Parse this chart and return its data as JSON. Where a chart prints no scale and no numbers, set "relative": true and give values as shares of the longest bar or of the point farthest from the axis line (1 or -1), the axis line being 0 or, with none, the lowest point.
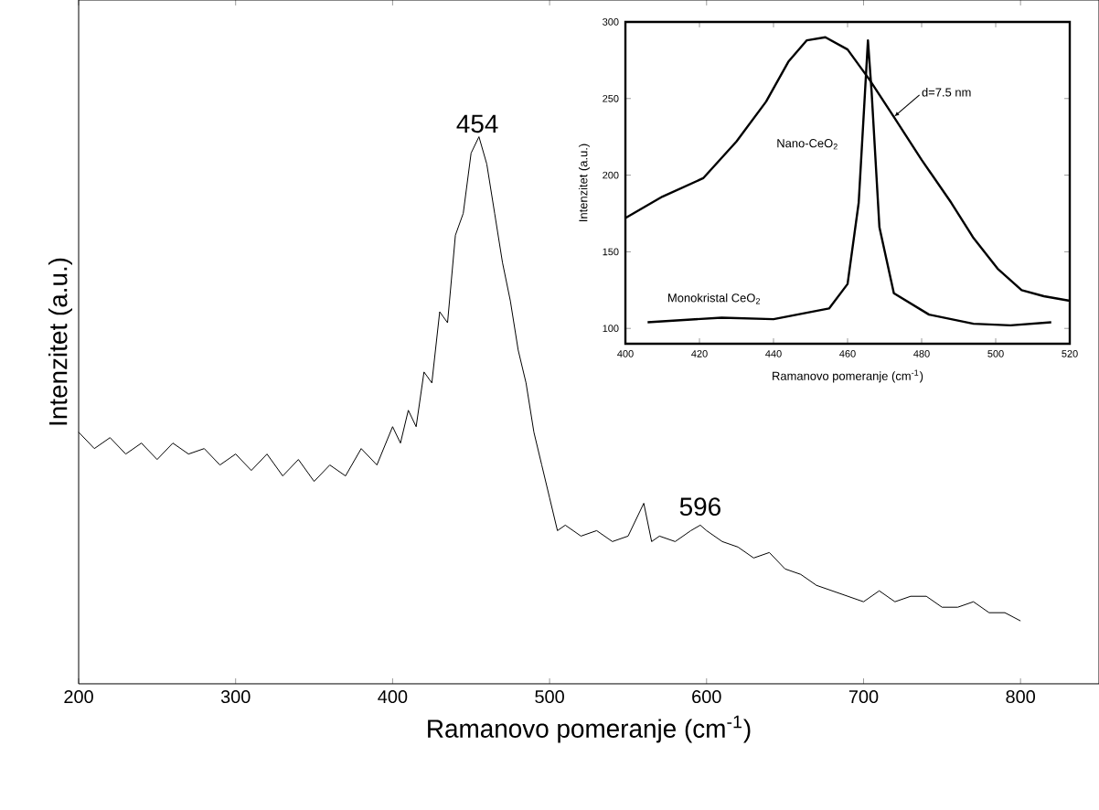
{
  "chart_data": [
    {
      "type": "line",
      "relative": true,
      "xlim": [
        200,
        850
      ],
      "xticks": [
        200,
        300,
        400,
        500,
        600,
        700,
        800
      ],
      "xlabel": "Ramanovo pomeranje (cm$^{-1}$)",
      "ylabel": "Intenzitet (a.u.)",
      "annotations": [
        {
          "text": "454",
          "x": 454,
          "y": 1.0
        },
        {
          "text": "596",
          "x": 596,
          "y": 0.3
        }
      ],
      "series": [
        {
          "color": "#000000",
          "x": [
            200,
            210,
            220,
            230,
            240,
            250,
            260,
            270,
            280,
            290,
            300,
            310,
            320,
            330,
            340,
            350,
            360,
            370,
            380,
            390,
            400,
            405,
            410,
            415,
            420,
            425,
            430,
            435,
            440,
            445,
            450,
            455,
            460,
            465,
            470,
            475,
            480,
            485,
            490,
            495,
            500,
            505,
            510,
            520,
            530,
            540,
            550,
            560,
            565,
            570,
            580,
            590,
            596,
            600,
            610,
            620,
            630,
            640,
            650,
            660,
            670,
            680,
            690,
            700,
            710,
            720,
            730,
            740,
            750,
            760,
            770,
            780,
            790,
            800
          ],
          "values": [
            0.46,
            0.43,
            0.45,
            0.42,
            0.44,
            0.41,
            0.44,
            0.42,
            0.43,
            0.4,
            0.42,
            0.39,
            0.42,
            0.38,
            0.41,
            0.37,
            0.4,
            0.38,
            0.43,
            0.4,
            0.47,
            0.44,
            0.5,
            0.47,
            0.57,
            0.55,
            0.68,
            0.66,
            0.82,
            0.86,
            0.97,
            1.0,
            0.95,
            0.86,
            0.77,
            0.7,
            0.61,
            0.55,
            0.46,
            0.4,
            0.34,
            0.28,
            0.29,
            0.27,
            0.28,
            0.26,
            0.27,
            0.33,
            0.26,
            0.27,
            0.26,
            0.28,
            0.29,
            0.28,
            0.26,
            0.25,
            0.23,
            0.24,
            0.21,
            0.2,
            0.18,
            0.17,
            0.16,
            0.15,
            0.17,
            0.15,
            0.16,
            0.16,
            0.14,
            0.14,
            0.15,
            0.13,
            0.13,
            0.115
          ]
        }
      ]
    },
    {
      "type": "line",
      "xlim": [
        400,
        520
      ],
      "xticks": [
        400,
        420,
        440,
        460,
        480,
        500,
        520
      ],
      "ylim": [
        90,
        300
      ],
      "yticks": [
        100,
        150,
        200,
        250,
        300
      ],
      "xlabel": "Ramanovo pomeranje (cm$^{-1}$)",
      "ylabel": "Intenzitet (a.u.)",
      "annotations": [
        "Nano-CeO$_{2}$",
        "Monokristal CeO$_{2}$",
        {
          "text": "d=7.5 nm",
          "x": 472.5,
          "y": 238
        }
      ],
      "series": [
        {
          "color": "#000000",
          "x": [
            400,
            410,
            421,
            430,
            438,
            444,
            449,
            454,
            460,
            466,
            472.5,
            480,
            488,
            494,
            500.5,
            507,
            513,
            520
          ],
          "values": [
            172,
            186,
            198,
            222,
            248,
            274,
            288,
            290,
            282,
            262,
            238,
            210,
            182,
            159,
            139,
            125,
            121,
            118
          ]
        },
        {
          "color": "#000000",
          "x": [
            406,
            426,
            440,
            455,
            460,
            463,
            464.7,
            465.5,
            466.5,
            468.6,
            472.5,
            482,
            494,
            504,
            515
          ],
          "values": [
            104,
            107,
            106,
            113,
            129,
            182,
            254,
            288,
            254,
            166,
            123,
            109,
            103,
            102,
            104
          ]
        }
      ]
    }
  ]
}
